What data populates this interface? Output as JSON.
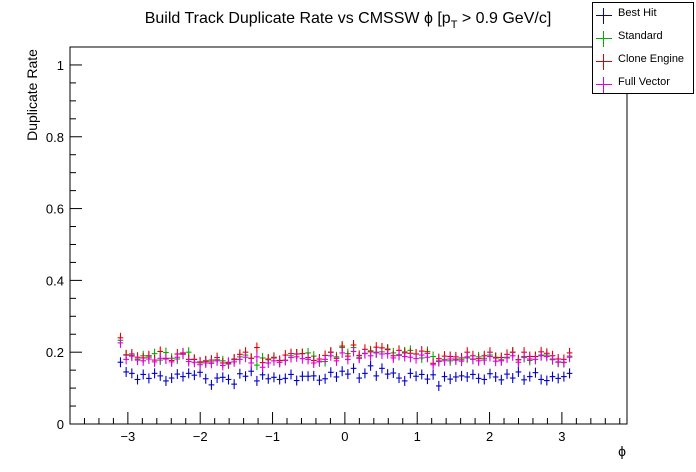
{
  "chart_data": {
    "type": "scatter",
    "title": "Build Track Duplicate Rate vs CMSSW ϕ [p_T > 0.9 GeV/c]",
    "title_main": "Build Track Duplicate Rate vs CMSSW ",
    "title_phi": "ϕ",
    "title_bracket_open": " [p",
    "title_sub": "T",
    "title_rest": " > 0.9 GeV/c]",
    "xlabel": "ϕ",
    "ylabel": "Duplicate Rate",
    "xlim": [
      -3.8,
      3.9
    ],
    "ylim": [
      0,
      1.05
    ],
    "x_ticks": [
      -3,
      -2,
      -1,
      0,
      1,
      2,
      3
    ],
    "y_ticks": [
      0,
      0.2,
      0.4,
      0.6,
      0.8,
      1
    ],
    "x_tick_labels": [
      "−3",
      "−2",
      "−1",
      "0",
      "1",
      "2",
      "3"
    ],
    "y_tick_labels": [
      "0",
      "0.2",
      "0.4",
      "0.6",
      "0.8",
      "1"
    ],
    "x_bin_half_width": 0.0393,
    "x": [
      -3.1023,
      -3.0238,
      -2.9452,
      -2.8666,
      -2.788,
      -2.7094,
      -2.6308,
      -2.5522,
      -2.4737,
      -2.3951,
      -2.3165,
      -2.2379,
      -2.1593,
      -2.0807,
      -2.0021,
      -1.9236,
      -1.845,
      -1.7664,
      -1.6878,
      -1.6092,
      -1.5306,
      -1.452,
      -1.3734,
      -1.2949,
      -1.2163,
      -1.1377,
      -1.0591,
      -0.9805,
      -0.9019,
      -0.8233,
      -0.7448,
      -0.6662,
      -0.5876,
      -0.509,
      -0.4304,
      -0.3518,
      -0.2732,
      -0.1947,
      -0.1161,
      -0.0375,
      0.0411,
      0.1197,
      0.1983,
      0.2769,
      0.3554,
      0.434,
      0.5126,
      0.5912,
      0.6698,
      0.7484,
      0.827,
      0.9055,
      0.9841,
      1.0627,
      1.1413,
      1.2199,
      1.2985,
      1.3771,
      1.4556,
      1.5342,
      1.6128,
      1.6914,
      1.77,
      1.8486,
      1.9272,
      2.0057,
      2.0843,
      2.1629,
      2.2415,
      2.3201,
      2.3987,
      2.4773,
      2.5558,
      2.6344,
      2.713,
      2.7916,
      2.8702,
      2.9488,
      3.0274,
      3.1059
    ],
    "series": [
      {
        "name": "Best Hit",
        "color": "#0000cc",
        "values": [
          0.172,
          0.145,
          0.141,
          0.124,
          0.138,
          0.127,
          0.141,
          0.134,
          0.12,
          0.128,
          0.139,
          0.132,
          0.141,
          0.136,
          0.144,
          0.126,
          0.109,
          0.128,
          0.13,
          0.124,
          0.111,
          0.14,
          0.133,
          0.147,
          0.12,
          0.137,
          0.126,
          0.13,
          0.124,
          0.127,
          0.138,
          0.121,
          0.133,
          0.133,
          0.134,
          0.122,
          0.126,
          0.144,
          0.131,
          0.147,
          0.139,
          0.155,
          0.128,
          0.141,
          0.162,
          0.134,
          0.155,
          0.139,
          0.142,
          0.128,
          0.12,
          0.141,
          0.133,
          0.138,
          0.125,
          0.137,
          0.106,
          0.132,
          0.125,
          0.131,
          0.134,
          0.131,
          0.138,
          0.127,
          0.124,
          0.14,
          0.131,
          0.123,
          0.139,
          0.128,
          0.145,
          0.123,
          0.132,
          0.143,
          0.124,
          0.121,
          0.132,
          0.127,
          0.132,
          0.141
        ]
      },
      {
        "name": "Standard",
        "color": "#00b000",
        "values": [
          0.233,
          0.193,
          0.191,
          0.181,
          0.19,
          0.186,
          0.196,
          0.178,
          0.199,
          0.183,
          0.181,
          0.194,
          0.2,
          0.18,
          0.17,
          0.174,
          0.173,
          0.179,
          0.176,
          0.167,
          0.179,
          0.187,
          0.192,
          0.183,
          0.164,
          0.184,
          0.179,
          0.186,
          0.172,
          0.178,
          0.19,
          0.195,
          0.196,
          0.198,
          0.189,
          0.173,
          0.174,
          0.2,
          0.187,
          0.213,
          0.196,
          0.213,
          0.186,
          0.197,
          0.204,
          0.2,
          0.201,
          0.209,
          0.198,
          0.191,
          0.201,
          0.205,
          0.195,
          0.184,
          0.202,
          0.188,
          0.176,
          0.18,
          0.176,
          0.181,
          0.179,
          0.184,
          0.18,
          0.187,
          0.183,
          0.192,
          0.186,
          0.179,
          0.186,
          0.2,
          0.179,
          0.185,
          0.177,
          0.188,
          0.192,
          0.192,
          0.179,
          0.172,
          0.171,
          0.189
        ]
      },
      {
        "name": "Clone Engine",
        "color": "#e00000",
        "values": [
          0.24,
          0.192,
          0.195,
          0.186,
          0.184,
          0.19,
          0.178,
          0.202,
          0.183,
          0.177,
          0.195,
          0.198,
          0.18,
          0.18,
          0.173,
          0.176,
          0.178,
          0.185,
          0.17,
          0.17,
          0.181,
          0.194,
          0.2,
          0.183,
          0.213,
          0.171,
          0.181,
          0.184,
          0.177,
          0.192,
          0.196,
          0.195,
          0.196,
          0.185,
          0.177,
          0.181,
          0.191,
          0.2,
          0.183,
          0.217,
          0.189,
          0.22,
          0.191,
          0.208,
          0.201,
          0.214,
          0.212,
          0.207,
          0.19,
          0.205,
          0.198,
          0.197,
          0.195,
          0.203,
          0.197,
          0.169,
          0.182,
          0.189,
          0.188,
          0.187,
          0.184,
          0.2,
          0.19,
          0.182,
          0.19,
          0.2,
          0.184,
          0.185,
          0.194,
          0.2,
          0.179,
          0.2,
          0.188,
          0.188,
          0.201,
          0.197,
          0.19,
          0.181,
          0.18,
          0.198
        ]
      },
      {
        "name": "Full Vector",
        "color": "#e000e0",
        "values": [
          0.226,
          0.18,
          0.189,
          0.178,
          0.176,
          0.181,
          0.173,
          0.183,
          0.181,
          0.173,
          0.186,
          0.195,
          0.174,
          0.172,
          0.165,
          0.17,
          0.169,
          0.176,
          0.163,
          0.172,
          0.173,
          0.18,
          0.186,
          0.17,
          0.187,
          0.158,
          0.17,
          0.176,
          0.172,
          0.177,
          0.185,
          0.187,
          0.182,
          0.18,
          0.17,
          0.175,
          0.18,
          0.19,
          0.176,
          0.198,
          0.18,
          0.202,
          0.183,
          0.196,
          0.19,
          0.198,
          0.195,
          0.196,
          0.184,
          0.193,
          0.188,
          0.186,
          0.182,
          0.192,
          0.186,
          0.165,
          0.174,
          0.176,
          0.181,
          0.178,
          0.175,
          0.187,
          0.181,
          0.176,
          0.178,
          0.188,
          0.175,
          0.176,
          0.184,
          0.19,
          0.172,
          0.188,
          0.181,
          0.18,
          0.19,
          0.188,
          0.181,
          0.173,
          0.172,
          0.186
        ]
      }
    ],
    "legend_position": "top-right",
    "grid": false
  },
  "legend": {
    "items": [
      {
        "label": "Best Hit"
      },
      {
        "label": "Standard"
      },
      {
        "label": "Clone Engine"
      },
      {
        "label": "Full Vector"
      }
    ]
  }
}
